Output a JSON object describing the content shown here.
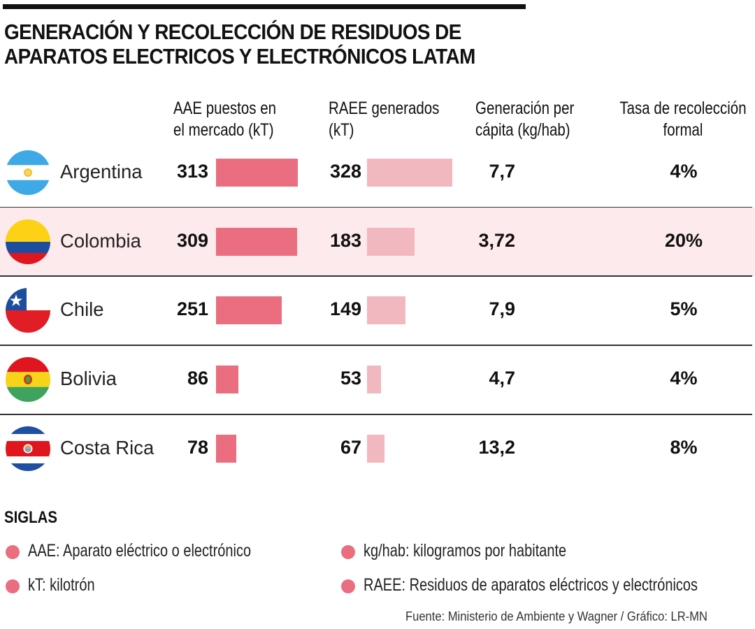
{
  "header": {
    "title_line1": "GENERACIÓN Y RECOLECCIÓN DE RESIDUOS DE",
    "title_line2": "APARATOS ELECTRICOS Y ELECTRÓNICOS LATAM"
  },
  "columns": {
    "aae": [
      "AAE puestos en",
      "el mercado (kT)"
    ],
    "raee": [
      "RAEE generados",
      "(kT)"
    ],
    "capita": [
      "Generación per",
      "cápita (kg/hab)"
    ],
    "tasa": [
      "Tasa de recolección",
      "formal"
    ]
  },
  "colors": {
    "aae": "#ea6d80",
    "raee": "#f2b8bf",
    "capita": "#e9c05a",
    "highlight_row": "#fdeaec",
    "legend_dot": "#ea6d80"
  },
  "rows": [
    {
      "country": "Argentina",
      "flag": "argentina-flag-icon",
      "aae": "313",
      "raee": "328",
      "capita": "7,7",
      "tasa": "4%",
      "highlight": false
    },
    {
      "country": "Colombia",
      "flag": "colombia-flag-icon",
      "aae": "309",
      "raee": "183",
      "capita": "3,72",
      "tasa": "20%",
      "highlight": true
    },
    {
      "country": "Chile",
      "flag": "chile-flag-icon",
      "aae": "251",
      "raee": "149",
      "capita": "7,9",
      "tasa": "5%",
      "highlight": false
    },
    {
      "country": "Bolivia",
      "flag": "bolivia-flag-icon",
      "aae": "86",
      "raee": "53",
      "capita": "4,7",
      "tasa": "4%",
      "highlight": false
    },
    {
      "country": "Costa Rica",
      "flag": "costa-rica-flag-icon",
      "aae": "78",
      "raee": "67",
      "capita": "13,2",
      "tasa": "8%",
      "highlight": false
    }
  ],
  "chart_data": {
    "type": "table",
    "title": "GENERACIÓN Y RECOLECCIÓN DE RESIDUOS DE APARATOS ELECTRICOS Y ELECTRÓNICOS LATAM",
    "categories": [
      "Argentina",
      "Colombia",
      "Chile",
      "Bolivia",
      "Costa Rica"
    ],
    "series": [
      {
        "name": "AAE puestos en el mercado (kT)",
        "values": [
          313,
          309,
          251,
          86,
          78
        ]
      },
      {
        "name": "RAEE generados (kT)",
        "values": [
          328,
          183,
          149,
          53,
          67
        ]
      },
      {
        "name": "Generación per cápita (kg/hab)",
        "values": [
          7.7,
          3.72,
          7.9,
          4.7,
          13.2
        ]
      },
      {
        "name": "Tasa de recolección formal (%)",
        "values": [
          4,
          20,
          5,
          4,
          8
        ]
      }
    ],
    "highlighted_category": "Colombia"
  },
  "legend": {
    "title": "SIGLAS",
    "items": [
      "AAE: Aparato eléctrico o electrónico",
      "kT: kilotrón",
      "kg/hab: kilogramos por habitante",
      "RAEE: Residuos de aparatos eléctricos y electrónicos"
    ]
  },
  "footer": {
    "source": "Fuente:  Ministerio de Ambiente y Wagner / Gráfico: LR-MN"
  }
}
